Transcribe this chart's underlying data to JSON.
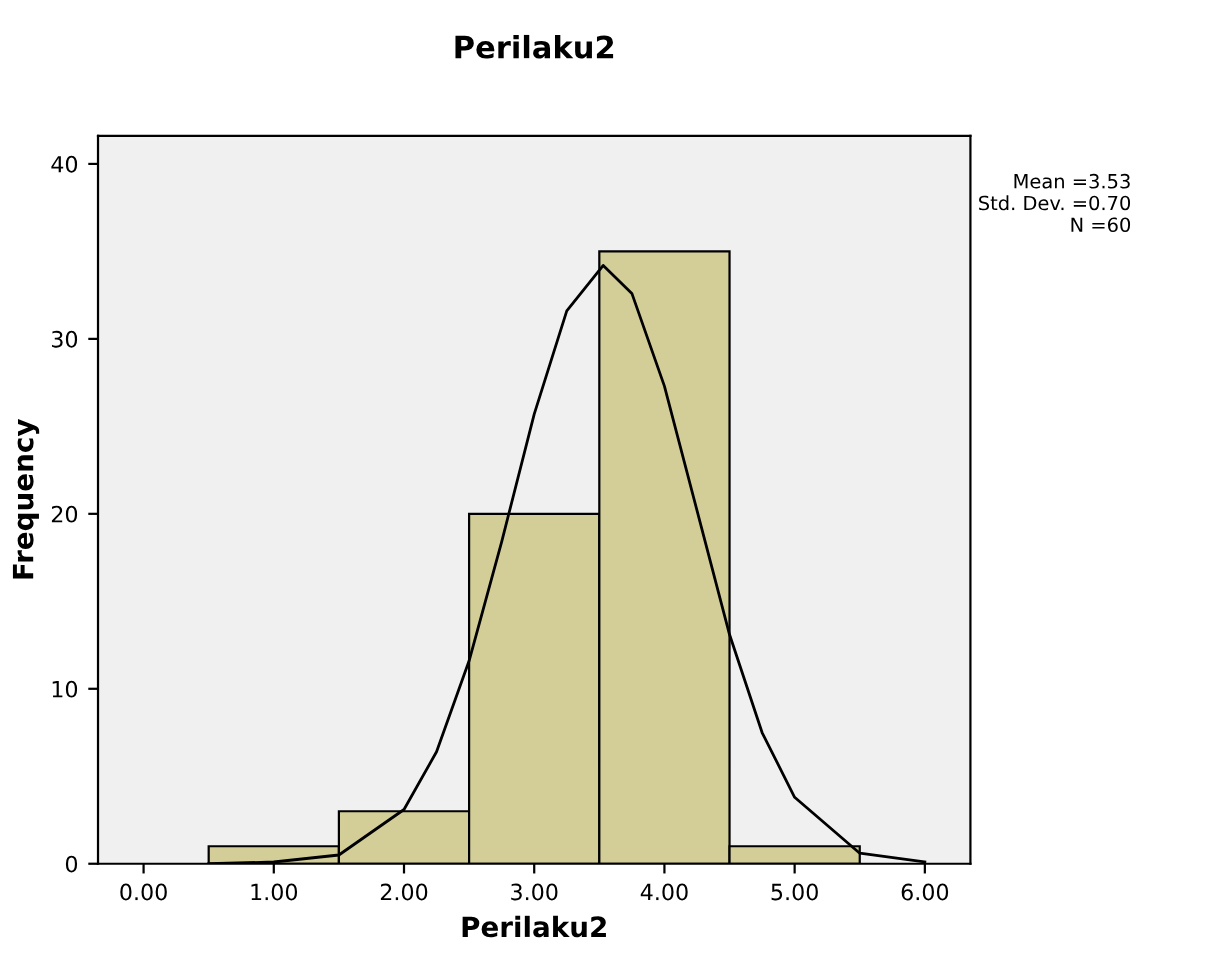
{
  "chart_data": {
    "type": "histogram",
    "title": "Perilaku2",
    "xlabel": "Perilaku2",
    "ylabel": "Frequency",
    "series": [
      {
        "bins": [
          0.5,
          1.5,
          2.5,
          3.5,
          4.5,
          5.5
        ],
        "values": [
          1,
          3,
          20,
          35,
          1
        ],
        "color": "#d3ce97"
      },
      {
        "type": "line",
        "x": [
          0.5,
          1.0,
          1.5,
          2.0,
          2.25,
          2.5,
          2.75,
          3.0,
          3.25,
          3.53,
          3.75,
          4.0,
          4.25,
          4.5,
          4.75,
          5.0,
          5.5,
          6.0
        ],
        "values": [
          0,
          0.1,
          0.5,
          3.1,
          6.4,
          11.6,
          18.4,
          25.7,
          31.6,
          34.2,
          32.6,
          27.3,
          20.2,
          13.1,
          7.5,
          3.8,
          0.6,
          0.1
        ],
        "color": "#000000"
      }
    ],
    "xlim": [
      -0.35,
      6.35
    ],
    "ylim": [
      0,
      41.6
    ],
    "xticks": [
      {
        "value": 0,
        "label": "0.00"
      },
      {
        "value": 1,
        "label": "1.00"
      },
      {
        "value": 2,
        "label": "2.00"
      },
      {
        "value": 3,
        "label": "3.00"
      },
      {
        "value": 4,
        "label": "4.00"
      },
      {
        "value": 5,
        "label": "5.00"
      },
      {
        "value": 6,
        "label": "6.00"
      }
    ],
    "yticks": [
      0,
      10,
      20,
      30,
      40
    ],
    "grid": false,
    "annotations": [
      "Mean =3.53\nStd. Dev. =0.70\nN =60"
    ]
  }
}
